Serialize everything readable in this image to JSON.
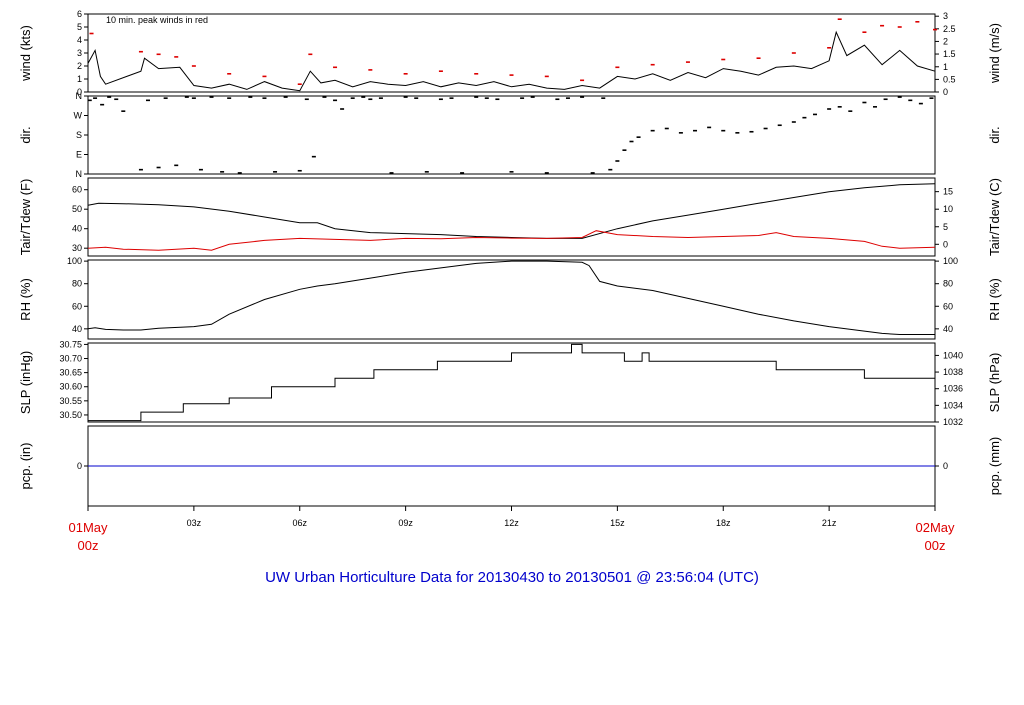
{
  "footer": {
    "prefix": "UW Urban Horticulture Data for",
    "from": "20130430",
    "to_word": "to",
    "to": "20130501",
    "at": "@ 23:56:04",
    "tz": "(UTC)",
    "color": "#0000cc"
  },
  "x_axis": {
    "hours": [
      0,
      3,
      6,
      9,
      12,
      15,
      18,
      21,
      24
    ],
    "tick_labels": [
      "",
      "03z",
      "06z",
      "09z",
      "12z",
      "15z",
      "18z",
      "21z",
      ""
    ],
    "start_label": [
      "01May",
      "00z"
    ],
    "end_label": [
      "02May",
      "00z"
    ],
    "edge_label_color": "#dd0000"
  },
  "chart_data": [
    {
      "type": "line",
      "title": "",
      "ylabel": "wind (kts)",
      "ylabel_right": "wind (m/s)",
      "annotation": "10 min. peak winds in red",
      "annotation_color": "#cc0000",
      "ylim": [
        0,
        6
      ],
      "yticks": [
        0,
        1,
        2,
        3,
        4,
        5,
        6
      ],
      "right_ticks": [
        {
          "label": "0",
          "value": 0
        },
        {
          "label": "0.5",
          "value": 0.97
        },
        {
          "label": "1",
          "value": 1.94
        },
        {
          "label": "1.5",
          "value": 2.92
        },
        {
          "label": "2",
          "value": 3.89
        },
        {
          "label": "2.5",
          "value": 4.86
        },
        {
          "label": "3",
          "value": 5.83
        }
      ],
      "series": [
        {
          "color": "#000000",
          "x": [
            0,
            0.2,
            0.35,
            0.5,
            1.5,
            1.6,
            2.0,
            2.6,
            3.0,
            3.5,
            4.0,
            4.5,
            5.0,
            5.5,
            6.0,
            6.3,
            6.6,
            7.0,
            7.5,
            8.0,
            8.5,
            9.0,
            9.5,
            10.0,
            10.5,
            11.0,
            11.5,
            12.0,
            12.5,
            13.0,
            13.5,
            14.0,
            14.5,
            15.0,
            15.5,
            16.0,
            16.5,
            17.0,
            17.5,
            18.0,
            18.5,
            19.0,
            19.5,
            20.0,
            20.5,
            21.0,
            21.2,
            21.5,
            22.0,
            22.5,
            23.0,
            23.5,
            24.0
          ],
          "values": [
            2.2,
            3.2,
            1.2,
            0.6,
            1.6,
            2.6,
            1.8,
            1.9,
            0.5,
            0.3,
            0.6,
            0.2,
            0.8,
            0.3,
            0.1,
            1.6,
            0.7,
            0.9,
            0.4,
            0.8,
            0.6,
            0.5,
            0.8,
            0.4,
            0.7,
            0.5,
            0.8,
            0.4,
            0.6,
            0.3,
            0.2,
            0.5,
            0.3,
            1.2,
            1.0,
            1.4,
            0.9,
            1.5,
            1.1,
            1.8,
            1.6,
            1.3,
            1.9,
            2.0,
            1.8,
            2.4,
            4.6,
            2.8,
            3.6,
            2.1,
            3.2,
            2.0,
            1.6
          ]
        },
        {
          "name": "10 min. peak winds",
          "color": "#dd0000",
          "x": [
            0.1,
            1.5,
            2.0,
            2.5,
            3.0,
            4.0,
            5.0,
            6.0,
            6.3,
            7.0,
            8.0,
            9.0,
            10.0,
            11.0,
            12.0,
            13.0,
            14.0,
            15.0,
            16.0,
            17.0,
            18.0,
            19.0,
            20.0,
            21.0,
            21.3,
            22.0,
            22.5,
            23.0,
            23.5,
            24.0
          ],
          "values": [
            4.5,
            3.1,
            2.9,
            2.7,
            2.0,
            1.4,
            1.2,
            0.6,
            2.9,
            1.9,
            1.7,
            1.4,
            1.6,
            1.4,
            1.3,
            1.2,
            0.9,
            1.9,
            2.1,
            2.3,
            2.5,
            2.6,
            3.0,
            3.4,
            5.6,
            4.6,
            5.1,
            5.0,
            5.4,
            4.8
          ]
        }
      ]
    },
    {
      "type": "scatter",
      "title": "",
      "ylabel": "dir.",
      "ylabel_right": "dir.",
      "ylim": [
        0,
        360
      ],
      "ytick_values": [
        0,
        90,
        180,
        270,
        360
      ],
      "ytick_labels": [
        "N",
        "E",
        "S",
        "W",
        "N"
      ],
      "series": [
        {
          "color": "#000000",
          "x": [
            0.05,
            0.2,
            0.4,
            0.6,
            0.8,
            1.0,
            1.5,
            1.7,
            2.0,
            2.2,
            2.5,
            2.8,
            3.0,
            3.2,
            3.5,
            3.8,
            4.0,
            4.3,
            4.6,
            5.0,
            5.3,
            5.6,
            6.0,
            6.2,
            6.4,
            6.7,
            7.0,
            7.2,
            7.5,
            7.8,
            8.0,
            8.3,
            8.6,
            9.0,
            9.3,
            9.6,
            10.0,
            10.3,
            10.6,
            11.0,
            11.3,
            11.6,
            12.0,
            12.3,
            12.6,
            13.0,
            13.3,
            13.6,
            14.0,
            14.3,
            14.6,
            14.8,
            15.0,
            15.2,
            15.4,
            15.6,
            16.0,
            16.4,
            16.8,
            17.2,
            17.6,
            18.0,
            18.4,
            18.8,
            19.2,
            19.6,
            20.0,
            20.3,
            20.6,
            21.0,
            21.3,
            21.6,
            22.0,
            22.3,
            22.6,
            23.0,
            23.3,
            23.6,
            23.9
          ],
          "values": [
            340,
            350,
            320,
            355,
            345,
            290,
            20,
            340,
            30,
            350,
            40,
            355,
            350,
            20,
            355,
            10,
            350,
            5,
            355,
            350,
            10,
            355,
            15,
            345,
            80,
            355,
            340,
            300,
            350,
            355,
            345,
            350,
            5,
            355,
            350,
            10,
            345,
            350,
            5,
            355,
            350,
            345,
            10,
            350,
            355,
            5,
            345,
            350,
            355,
            5,
            350,
            20,
            60,
            110,
            150,
            170,
            200,
            210,
            190,
            200,
            215,
            200,
            190,
            195,
            210,
            225,
            240,
            260,
            275,
            300,
            310,
            290,
            330,
            310,
            345,
            355,
            340,
            325,
            350
          ]
        }
      ]
    },
    {
      "type": "line",
      "title": "",
      "ylabel": "Tair/Tdew (F)",
      "ylabel_right": "Tair/Tdew (C)",
      "ylim": [
        26,
        66
      ],
      "yticks": [
        30,
        40,
        50,
        60
      ],
      "right_ticks": [
        {
          "label": "0",
          "value": 32
        },
        {
          "label": "5",
          "value": 41
        },
        {
          "label": "10",
          "value": 50
        },
        {
          "label": "15",
          "value": 59
        }
      ],
      "series": [
        {
          "color": "#000000",
          "x": [
            0,
            0.3,
            1.0,
            2.0,
            3.0,
            4.0,
            5.0,
            6.0,
            6.5,
            7.0,
            8.0,
            9.0,
            10.0,
            11.0,
            12.0,
            13.0,
            14.0,
            15.0,
            16.0,
            17.0,
            18.0,
            19.0,
            20.0,
            21.0,
            22.0,
            23.0,
            24.0
          ],
          "values": [
            52,
            53,
            52.8,
            52.3,
            51.2,
            49,
            46,
            43,
            43,
            40,
            38,
            37.5,
            37,
            36,
            35.5,
            35,
            35,
            40,
            44,
            47,
            50,
            53,
            56,
            59,
            61,
            62.5,
            63
          ]
        },
        {
          "color": "#dd0000",
          "x": [
            0,
            0.5,
            1.0,
            2.0,
            3.0,
            3.5,
            4.0,
            5.0,
            6.0,
            7.0,
            8.0,
            9.0,
            10.0,
            11.0,
            12.0,
            13.0,
            14.0,
            14.4,
            15.0,
            16.0,
            17.0,
            18.0,
            19.0,
            19.5,
            20.0,
            21.0,
            22.0,
            22.5,
            23.0,
            24.0
          ],
          "values": [
            30,
            30.5,
            29.5,
            29,
            30,
            29,
            32,
            34,
            35,
            34.5,
            34,
            35,
            34.8,
            35.5,
            35.2,
            35,
            35.5,
            39,
            37,
            36,
            35.5,
            36,
            36.5,
            38,
            36,
            35,
            33.5,
            31,
            30,
            30.5
          ]
        }
      ]
    },
    {
      "type": "line",
      "title": "",
      "ylabel": "RH (%)",
      "ylabel_right": "RH (%)",
      "ylim": [
        31,
        101
      ],
      "yticks": [
        40,
        60,
        80,
        100
      ],
      "right_ticks": [
        {
          "label": "40",
          "value": 40
        },
        {
          "label": "60",
          "value": 60
        },
        {
          "label": "80",
          "value": 80
        },
        {
          "label": "100",
          "value": 100
        }
      ],
      "series": [
        {
          "color": "#000000",
          "x": [
            0,
            0.2,
            0.5,
            1.0,
            1.5,
            2.0,
            3.0,
            3.5,
            4.0,
            5.0,
            6.0,
            6.5,
            7.0,
            8.0,
            9.0,
            10.0,
            11.0,
            12.0,
            13.0,
            14.0,
            14.2,
            14.5,
            15.0,
            16.0,
            17.0,
            18.0,
            19.0,
            20.0,
            21.0,
            22.0,
            22.5,
            23.0,
            24.0
          ],
          "values": [
            40,
            41,
            39.5,
            39,
            39,
            40.5,
            42,
            44,
            53,
            66,
            75,
            78,
            80,
            85,
            90,
            94,
            98,
            100,
            100,
            99,
            96,
            82,
            78,
            74,
            67,
            60,
            53,
            47,
            42,
            38,
            36,
            35,
            35
          ]
        }
      ]
    },
    {
      "type": "line",
      "title": "",
      "ylabel": "SLP (inHg)",
      "ylabel_right": "SLP (hPa)",
      "ylim": [
        30.475,
        30.755
      ],
      "yticks": [
        30.5,
        30.55,
        30.6,
        30.65,
        30.7,
        30.75
      ],
      "ytick_labels": [
        "30.50",
        "30.55",
        "30.60",
        "30.65",
        "30.70",
        "30.75"
      ],
      "right_ticks": [
        {
          "label": "1032",
          "value": 30.475
        },
        {
          "label": "1034",
          "value": 30.534
        },
        {
          "label": "1036",
          "value": 30.593
        },
        {
          "label": "1038",
          "value": 30.652
        },
        {
          "label": "1040",
          "value": 30.711
        }
      ],
      "series": [
        {
          "color": "#000000",
          "step": true,
          "x": [
            0,
            1.5,
            2.7,
            4.0,
            5.2,
            7.0,
            8.1,
            9.9,
            12.0,
            13.7,
            14.0,
            15.2,
            15.7,
            15.9,
            16.0,
            19.5,
            22.0,
            24.0
          ],
          "values": [
            30.48,
            30.51,
            30.54,
            30.56,
            30.6,
            30.63,
            30.66,
            30.69,
            30.72,
            30.75,
            30.72,
            30.69,
            30.72,
            30.69,
            30.69,
            30.66,
            30.63,
            30.63
          ]
        }
      ]
    },
    {
      "type": "line",
      "title": "",
      "ylabel": "pcp. (in)",
      "ylabel_right": "pcp. (mm)",
      "ylim": [
        -1,
        1
      ],
      "yticks": [
        0
      ],
      "right_ticks": [
        {
          "label": "0",
          "value": 0
        }
      ],
      "series": [
        {
          "color": "#0000cc",
          "x": [
            0,
            24
          ],
          "values": [
            0,
            0
          ]
        }
      ]
    }
  ]
}
